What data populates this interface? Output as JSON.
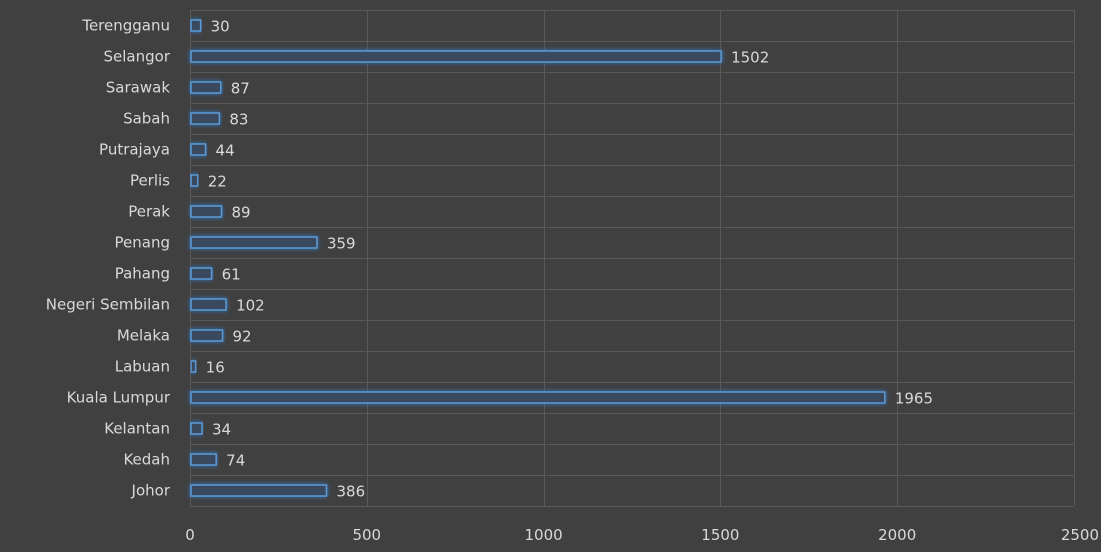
{
  "colors": {
    "background": "#404040",
    "gridline": "#595959",
    "bar_fill": "#3a4a5e",
    "bar_stroke": "#5b9bd5",
    "bar_glow": "#2f7fd6",
    "text": "#d9d9d9"
  },
  "chart_data": {
    "type": "bar",
    "orientation": "horizontal",
    "title": "",
    "xlabel": "",
    "ylabel": "",
    "xlim": [
      0,
      2500
    ],
    "x_ticks": [
      0,
      500,
      1000,
      1500,
      2000,
      2500
    ],
    "grid": true,
    "legend": "none",
    "data_labels": true,
    "categories": [
      "Terengganu",
      "Selangor",
      "Sarawak",
      "Sabah",
      "Putrajaya",
      "Perlis",
      "Perak",
      "Penang",
      "Pahang",
      "Negeri Sembilan",
      "Melaka",
      "Labuan",
      "Kuala Lumpur",
      "Kelantan",
      "Kedah",
      "Johor"
    ],
    "values": [
      30,
      1502,
      87,
      83,
      44,
      22,
      89,
      359,
      61,
      102,
      92,
      16,
      1965,
      34,
      74,
      386
    ]
  }
}
